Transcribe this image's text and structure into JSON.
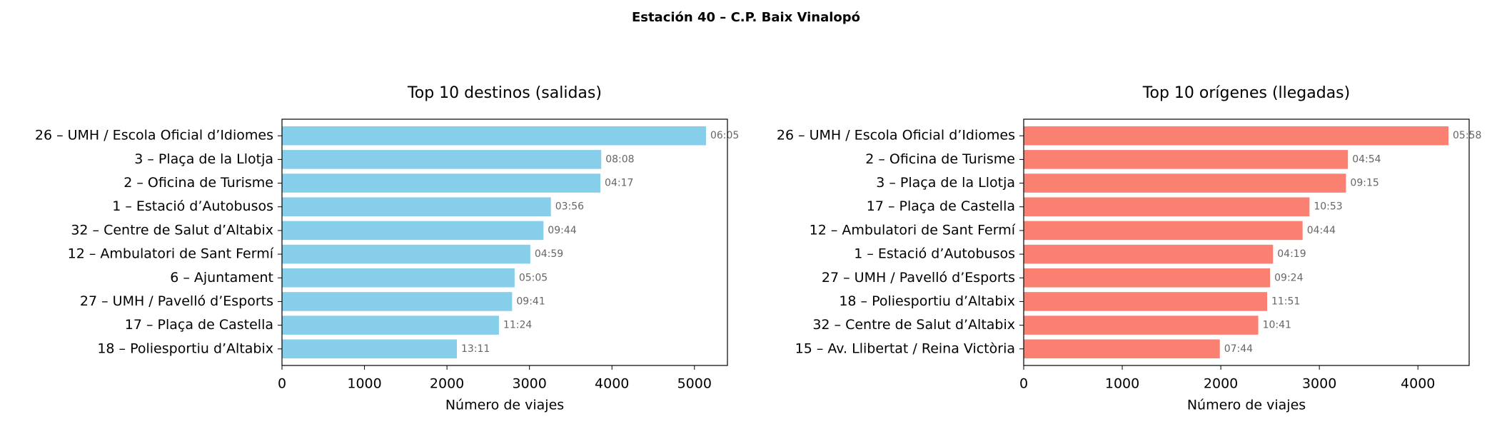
{
  "title": "Estación 40 – C.P. Baix Vinalopó",
  "chart_data": [
    {
      "type": "barh",
      "title": "Top 10 destinos (salidas)",
      "x_label": "Número de viajes",
      "color": "#87ceeb",
      "categories": [
        "26 – UMH / Escola Oficial d’Idiomes",
        "3 – Plaça de la Llotja",
        "2 – Oficina de Turisme",
        "1 – Estació d’Autobusos",
        "32 – Centre de Salut d’Altabix",
        "12 – Ambulatori de Sant Fermí",
        "6 – Ajuntament",
        "27 – UMH / Pavelló d’Esports",
        "17 – Plaça de Castella",
        "18 – Poliesportiu d’Altabix"
      ],
      "values": [
        5140,
        3870,
        3860,
        3260,
        3170,
        3010,
        2820,
        2790,
        2630,
        2120
      ],
      "bar_labels": [
        "06:05",
        "08:08",
        "04:17",
        "03:56",
        "09:44",
        "04:59",
        "05:05",
        "09:41",
        "11:24",
        "13:11"
      ],
      "xlim": [
        0,
        5400
      ],
      "xticks": [
        0,
        1000,
        2000,
        3000,
        4000,
        5000
      ]
    },
    {
      "type": "barh",
      "title": "Top 10 orígenes (llegadas)",
      "x_label": "Número de viajes",
      "color": "#fa8072",
      "categories": [
        "26 – UMH / Escola Oficial d’Idiomes",
        "2 – Oficina de Turisme",
        "3 – Plaça de la Llotja",
        "17 – Plaça de Castella",
        "12 – Ambulatori de Sant Fermí",
        "1 – Estació d’Autobusos",
        "27 – UMH / Pavelló d’Esports",
        "18 – Poliesportiu d’Altabix",
        "32 – Centre de Salut d’Altabix",
        "15 – Av. Llibertat / Reina Victòria"
      ],
      "values": [
        4310,
        3290,
        3270,
        2900,
        2830,
        2530,
        2500,
        2470,
        2380,
        1990
      ],
      "bar_labels": [
        "05:58",
        "04:54",
        "09:15",
        "10:53",
        "04:44",
        "04:19",
        "09:24",
        "11:51",
        "10:41",
        "07:44"
      ],
      "xlim": [
        0,
        4520
      ],
      "xticks": [
        0,
        1000,
        2000,
        3000,
        4000
      ]
    }
  ]
}
